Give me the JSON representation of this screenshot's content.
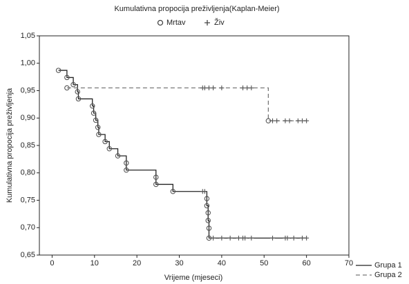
{
  "chart_data": {
    "type": "kaplan-meier",
    "title": "Kumulativna propocija preživljenja(Kaplan-Meier)",
    "marker_legend": {
      "dead": "Mrtav",
      "censored": "Živ"
    },
    "xlabel": "Vrijeme (mjeseci)",
    "ylabel": "Kumulativna propocija preživljenja",
    "xlim": [
      -3,
      70
    ],
    "ylim": [
      0.65,
      1.05
    ],
    "xticks": [
      0,
      10,
      20,
      30,
      40,
      50,
      60,
      70
    ],
    "yticks": [
      {
        "value": 0.65,
        "label": "0,65"
      },
      {
        "value": 0.7,
        "label": "0,70"
      },
      {
        "value": 0.75,
        "label": "0,75"
      },
      {
        "value": 0.8,
        "label": "0,80"
      },
      {
        "value": 0.85,
        "label": "0,85"
      },
      {
        "value": 0.9,
        "label": "0,90"
      },
      {
        "value": 0.95,
        "label": "0,95"
      },
      {
        "value": 1.0,
        "label": "1,00"
      },
      {
        "value": 1.05,
        "label": "1,05"
      }
    ],
    "series": [
      {
        "name": "Grupa 1",
        "color": "#222222",
        "dashed": false,
        "dead_x": [
          1.5,
          3.5,
          5,
          6,
          6.2,
          9.5,
          9.8,
          10.3,
          10.8,
          11,
          12.5,
          13.5,
          15.5,
          17.5,
          17.5,
          24.5,
          24.5,
          28.5,
          36.5,
          36.5,
          36.8,
          36.8,
          37,
          37
        ],
        "dead_values": [
          0.987,
          0.974,
          0.961,
          0.948,
          0.935,
          0.922,
          0.909,
          0.896,
          0.883,
          0.87,
          0.857,
          0.844,
          0.831,
          0.818,
          0.805,
          0.792,
          0.779,
          0.766,
          0.753,
          0.74,
          0.727,
          0.713,
          0.699,
          0.681
        ],
        "censored_x": [
          35.5,
          36,
          38,
          40,
          42,
          44,
          45,
          45.5,
          47,
          52,
          55,
          55.5,
          57,
          59,
          60
        ],
        "censored_values": [
          0.766,
          0.766,
          0.681,
          0.681,
          0.681,
          0.681,
          0.681,
          0.681,
          0.681,
          0.681,
          0.681,
          0.681,
          0.681,
          0.681,
          0.681
        ]
      },
      {
        "name": "Grupa 2",
        "color": "#777777",
        "dashed": true,
        "dead_x": [
          3.5,
          51
        ],
        "dead_values": [
          0.955,
          0.895
        ],
        "censored_x": [
          35.5,
          36,
          37,
          38,
          40,
          45,
          46,
          47,
          52,
          53,
          55,
          56,
          58,
          59,
          60
        ],
        "censored_values": [
          0.955,
          0.955,
          0.955,
          0.955,
          0.955,
          0.955,
          0.955,
          0.955,
          0.895,
          0.895,
          0.895,
          0.895,
          0.895,
          0.895,
          0.895
        ]
      }
    ]
  }
}
